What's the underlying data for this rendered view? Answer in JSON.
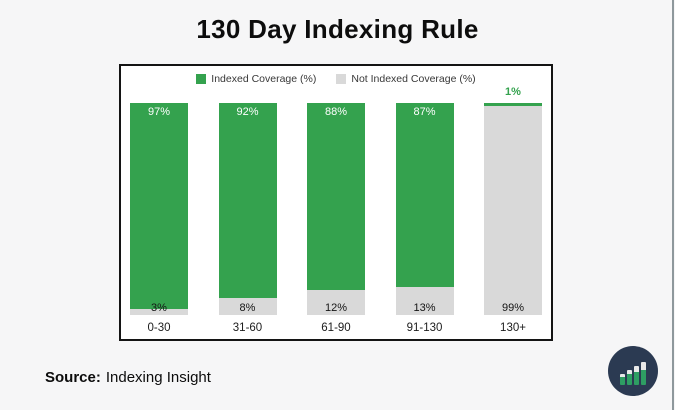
{
  "page": {
    "title": "130 Day Indexing Rule",
    "background_color": "#f6f6f7",
    "source_label": "Source:",
    "source_value": "Indexing Insight"
  },
  "chart_data": {
    "type": "bar",
    "stacked": true,
    "title": "130 Day Indexing Rule",
    "categories": [
      "0-30",
      "31-60",
      "61-90",
      "91-130",
      "130+"
    ],
    "series": [
      {
        "name": "Indexed Coverage (%)",
        "color": "#34a24e",
        "values": [
          97,
          92,
          88,
          87,
          1
        ]
      },
      {
        "name": "Not Indexed Coverage (%)",
        "color": "#d9d9d9",
        "values": [
          3,
          8,
          12,
          13,
          99
        ]
      }
    ],
    "value_suffix": "%",
    "ylim": [
      0,
      100
    ],
    "grid": false,
    "legend_position": "top",
    "bar_label_colors": {
      "indexed_inside": "#ffffff",
      "not_indexed": "#141414",
      "indexed_outside": "#34a24e"
    }
  },
  "logo": {
    "name": "indexing-insight-logo",
    "circle_color": "#2b3a52",
    "bar_color": "#2e9e63",
    "cap_color": "#e9e9e9",
    "bar_heights": [
      11,
      15,
      19,
      23
    ],
    "cap_heights": [
      3,
      4,
      6,
      8
    ]
  }
}
